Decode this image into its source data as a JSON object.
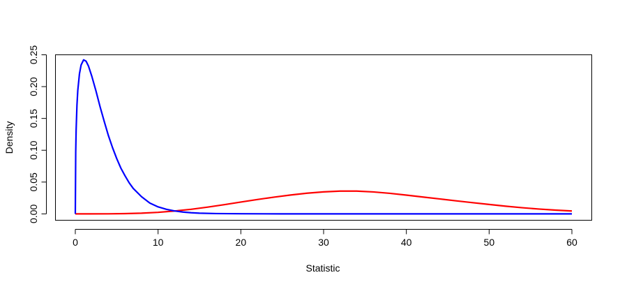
{
  "chart_data": {
    "type": "line",
    "title": "",
    "xlabel": "Statistic",
    "ylabel": "Density",
    "xlim": [
      -2.4,
      62.4
    ],
    "ylim": [
      -0.01,
      0.25
    ],
    "x_ticks": [
      0,
      10,
      20,
      30,
      40,
      50,
      60
    ],
    "x_tick_labels": [
      "0",
      "10",
      "20",
      "30",
      "40",
      "50",
      "60"
    ],
    "y_ticks": [
      0.0,
      0.05,
      0.1,
      0.15,
      0.2,
      0.25
    ],
    "y_tick_labels": [
      "0.00",
      "0.05",
      "0.10",
      "0.15",
      "0.20",
      "0.25"
    ],
    "grid": false,
    "legend": "none",
    "series": [
      {
        "color": "#0000ff",
        "x": [
          0,
          0.05,
          0.1,
          0.2,
          0.3,
          0.5,
          0.7,
          1.0,
          1.3,
          1.6,
          2,
          2.5,
          3,
          3.5,
          4,
          4.5,
          5,
          5.5,
          6,
          6.5,
          7,
          8,
          9,
          10,
          11,
          12,
          13,
          14,
          15,
          17,
          20,
          25,
          30,
          40,
          50,
          60
        ],
        "y": [
          0,
          0.097,
          0.132,
          0.171,
          0.194,
          0.22,
          0.234,
          0.242,
          0.24,
          0.232,
          0.216,
          0.193,
          0.168,
          0.145,
          0.123,
          0.104,
          0.087,
          0.072,
          0.06,
          0.049,
          0.04,
          0.027,
          0.017,
          0.011,
          0.0072,
          0.0046,
          0.0029,
          0.0018,
          0.0011,
          0.0005,
          0.0002,
          0,
          0,
          0,
          0,
          0
        ]
      },
      {
        "color": "#ff0000",
        "x": [
          0,
          4,
          6,
          8,
          10,
          12,
          14,
          16,
          18,
          20,
          22,
          24,
          26,
          28,
          30,
          32,
          34,
          36,
          38,
          40,
          42,
          44,
          46,
          48,
          50,
          52,
          54,
          56,
          58,
          60
        ],
        "y": [
          0,
          0.0001,
          0.0004,
          0.0011,
          0.0024,
          0.0045,
          0.0072,
          0.0106,
          0.0145,
          0.0186,
          0.0226,
          0.0263,
          0.0296,
          0.0325,
          0.0346,
          0.0358,
          0.0358,
          0.0345,
          0.0323,
          0.0295,
          0.0265,
          0.0235,
          0.0205,
          0.0176,
          0.0148,
          0.0121,
          0.0097,
          0.0076,
          0.0059,
          0.0045
        ]
      }
    ]
  }
}
